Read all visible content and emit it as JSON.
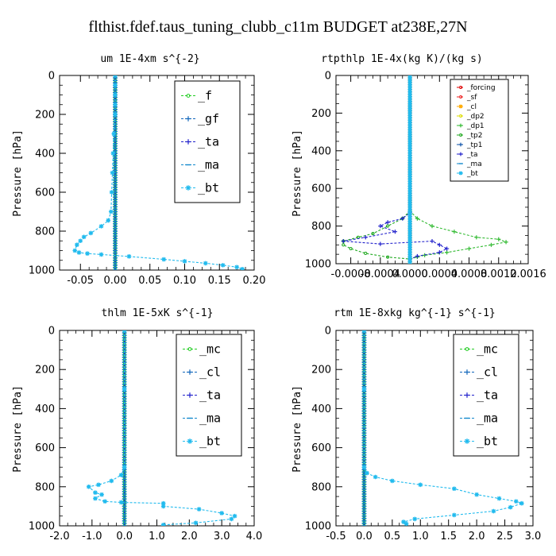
{
  "figure": {
    "title": "flthist.fdef.taus_tuning_clubb_c11m  BUDGET at238E,27N"
  },
  "chart_data": [
    {
      "type": "line",
      "title": "um   1E-4xm s^{-2}",
      "ylabel": "Pressure [hPa]",
      "xlim": [
        -0.08,
        0.2
      ],
      "ylim": [
        1000,
        0
      ],
      "xticks": [
        -0.05,
        0.0,
        0.05,
        0.1,
        0.15,
        0.2
      ],
      "xtick_labels": [
        "-0.05",
        "0.00",
        "0.05",
        "0.10",
        "0.15",
        "0.20"
      ],
      "yticks": [
        0,
        200,
        400,
        600,
        800,
        1000
      ],
      "legend_position": "top-right",
      "legend_style": "big",
      "series": [
        {
          "name": "_f",
          "color": "#22cc22",
          "marker": "circle",
          "x": [
            0,
            0
          ],
          "y": [
            0,
            1000
          ]
        },
        {
          "name": "_gf",
          "color": "#1166bb",
          "marker": "plus",
          "x": [
            0,
            0
          ],
          "y": [
            0,
            1000
          ]
        },
        {
          "name": "_ta",
          "color": "#2222cc",
          "marker": "plus",
          "x": [
            0,
            0
          ],
          "y": [
            0,
            1000
          ]
        },
        {
          "name": "_ma",
          "color": "#1188cc",
          "marker": "dash",
          "x": [
            0,
            0
          ],
          "y": [
            0,
            1000
          ]
        },
        {
          "name": "_bt",
          "color": "#22bbee",
          "marker": "star",
          "x": [
            0,
            0,
            0,
            0,
            0,
            -0.002,
            -0.003,
            -0.004,
            -0.005,
            -0.006,
            -0.01,
            -0.02,
            -0.035,
            -0.045,
            -0.05,
            -0.055,
            -0.058,
            -0.052,
            -0.04,
            -0.02,
            0.02,
            0.07,
            0.1,
            0.13,
            0.155,
            0.175,
            0.183
          ],
          "y": [
            0,
            50,
            100,
            150,
            200,
            300,
            400,
            500,
            600,
            700,
            745,
            775,
            810,
            830,
            850,
            870,
            900,
            910,
            915,
            920,
            930,
            945,
            955,
            965,
            975,
            985,
            995
          ]
        }
      ]
    },
    {
      "type": "line",
      "title": "rtpthlp   1E-4x(kg K)/(kg s)",
      "ylabel": "Pressure [hPa]",
      "xlim": [
        -0.001,
        0.0016
      ],
      "ylim": [
        1000,
        0
      ],
      "xticks": [
        -0.0008,
        -0.0004,
        0.0,
        0.0004,
        0.0008,
        0.0012,
        0.0016
      ],
      "xtick_labels": [
        "-0.0008",
        "-0.0004",
        "0.0000",
        "0.0004",
        "0.0008",
        "0.0012",
        "0.0016"
      ],
      "yticks": [
        0,
        200,
        400,
        600,
        800,
        1000
      ],
      "legend_position": "top-right",
      "legend_style": "small",
      "series": [
        {
          "name": "_forcing",
          "color": "#dd0000",
          "marker": "circle",
          "x": [
            0,
            0
          ],
          "y": [
            0,
            1000
          ]
        },
        {
          "name": "_sf",
          "color": "#ee2222",
          "marker": "circle",
          "x": [
            0,
            0
          ],
          "y": [
            0,
            1000
          ]
        },
        {
          "name": "_cl",
          "color": "#ffaa00",
          "marker": "star",
          "x": [
            0,
            0
          ],
          "y": [
            0,
            1000
          ]
        },
        {
          "name": "_dp2",
          "color": "#dddd00",
          "marker": "circle",
          "x": [
            0,
            0
          ],
          "y": [
            0,
            1000
          ]
        },
        {
          "name": "_dp1",
          "color": "#33bb33",
          "marker": "plus",
          "x": [
            0,
            0,
            0.0001,
            0.0003,
            0.0006,
            0.0009,
            0.0012,
            0.0013,
            0.0011,
            0.0008,
            0.0005,
            0.0002,
            0.0001,
            0
          ],
          "y": [
            0,
            720,
            760,
            800,
            830,
            860,
            870,
            885,
            900,
            920,
            940,
            955,
            965,
            975
          ]
        },
        {
          "name": "_tp2",
          "color": "#22aa22",
          "marker": "circle",
          "x": [
            0,
            0,
            -0.0001,
            -0.0003,
            -0.0005,
            -0.0007,
            -0.0009,
            -0.0009,
            -0.0008,
            -0.0006,
            -0.0003,
            0
          ],
          "y": [
            0,
            720,
            760,
            800,
            840,
            860,
            880,
            900,
            920,
            945,
            965,
            975
          ]
        },
        {
          "name": "_tp1",
          "color": "#1155aa",
          "marker": "plus",
          "x": [
            0,
            0
          ],
          "y": [
            0,
            1000
          ]
        },
        {
          "name": "_ta",
          "color": "#2222cc",
          "marker": "plus",
          "x": [
            0,
            0,
            -0.0001,
            -0.0003,
            -0.0004,
            -0.0002,
            -0.0006,
            -0.0009,
            -0.0004,
            0.0003,
            0.0004,
            0.0005,
            0.0004,
            0.0001,
            0
          ],
          "y": [
            0,
            730,
            760,
            780,
            800,
            830,
            860,
            880,
            895,
            880,
            900,
            920,
            940,
            960,
            975
          ]
        },
        {
          "name": "_ma",
          "color": "#1188cc",
          "marker": "dash",
          "x": [
            0,
            0
          ],
          "y": [
            0,
            1000
          ]
        },
        {
          "name": "_bt",
          "color": "#22bbee",
          "marker": "star",
          "x": [
            0,
            0
          ],
          "y": [
            0,
            1000
          ]
        }
      ]
    },
    {
      "type": "line",
      "title": "thlm   1E-5xK s^{-1}",
      "ylabel": "Pressure [hPa]",
      "xlim": [
        -2.0,
        4.0
      ],
      "ylim": [
        1000,
        0
      ],
      "xticks": [
        -2.0,
        -1.0,
        0.0,
        1.0,
        2.0,
        3.0,
        4.0
      ],
      "xtick_labels": [
        "-2.0",
        "-1.0",
        "0.0",
        "1.0",
        "2.0",
        "3.0",
        "4.0"
      ],
      "yticks": [
        0,
        200,
        400,
        600,
        800,
        1000
      ],
      "legend_position": "top-right",
      "legend_style": "big",
      "series": [
        {
          "name": "_mc",
          "color": "#22cc22",
          "marker": "circle",
          "x": [
            0,
            0
          ],
          "y": [
            0,
            1000
          ]
        },
        {
          "name": "_cl",
          "color": "#1166bb",
          "marker": "plus",
          "x": [
            0,
            0
          ],
          "y": [
            0,
            1000
          ]
        },
        {
          "name": "_ta",
          "color": "#2222cc",
          "marker": "plus",
          "x": [
            0,
            0
          ],
          "y": [
            0,
            1000
          ]
        },
        {
          "name": "_ma",
          "color": "#1188cc",
          "marker": "dash",
          "x": [
            0,
            0
          ],
          "y": [
            0,
            1000
          ]
        },
        {
          "name": "_bt",
          "color": "#22bbee",
          "marker": "star",
          "x": [
            0,
            0,
            0,
            -0.1,
            -0.4,
            -0.8,
            -1.1,
            -0.9,
            -0.7,
            -0.9,
            -0.6,
            -0.1,
            1.2,
            1.2,
            2.3,
            3.0,
            3.4,
            3.3,
            2.2,
            1.2,
            1.2
          ],
          "y": [
            0,
            300,
            700,
            740,
            770,
            790,
            800,
            830,
            840,
            860,
            875,
            880,
            885,
            900,
            915,
            935,
            950,
            965,
            985,
            995,
            1000
          ]
        }
      ]
    },
    {
      "type": "line",
      "title": "rtm   1E-8xkg kg^{-1} s^{-1}",
      "ylabel": "Pressure [hPa]",
      "xlim": [
        -0.5,
        3.0
      ],
      "ylim": [
        1000,
        0
      ],
      "xticks": [
        -0.5,
        0.0,
        0.5,
        1.0,
        1.5,
        2.0,
        2.5,
        3.0
      ],
      "xtick_labels": [
        "-0.5",
        "0.0",
        "0.5",
        "1.0",
        "1.5",
        "2.0",
        "2.5",
        "3.0"
      ],
      "yticks": [
        0,
        200,
        400,
        600,
        800,
        1000
      ],
      "legend_position": "top-right",
      "legend_style": "big",
      "series": [
        {
          "name": "_mc",
          "color": "#22cc22",
          "marker": "circle",
          "x": [
            0,
            0
          ],
          "y": [
            0,
            1000
          ]
        },
        {
          "name": "_cl",
          "color": "#1166bb",
          "marker": "plus",
          "x": [
            0,
            0
          ],
          "y": [
            0,
            1000
          ]
        },
        {
          "name": "_ta",
          "color": "#2222cc",
          "marker": "plus",
          "x": [
            0,
            0
          ],
          "y": [
            0,
            1000
          ]
        },
        {
          "name": "_ma",
          "color": "#1188cc",
          "marker": "dash",
          "x": [
            0,
            0
          ],
          "y": [
            0,
            1000
          ]
        },
        {
          "name": "_bt",
          "color": "#22bbee",
          "marker": "star",
          "x": [
            0,
            0,
            0,
            0.05,
            0.2,
            0.5,
            1.0,
            1.6,
            2.0,
            2.4,
            2.7,
            2.8,
            2.6,
            2.3,
            1.6,
            0.9,
            0.7,
            0.75
          ],
          "y": [
            0,
            300,
            700,
            730,
            750,
            770,
            790,
            810,
            840,
            860,
            875,
            885,
            905,
            925,
            945,
            965,
            980,
            990
          ]
        }
      ]
    }
  ]
}
